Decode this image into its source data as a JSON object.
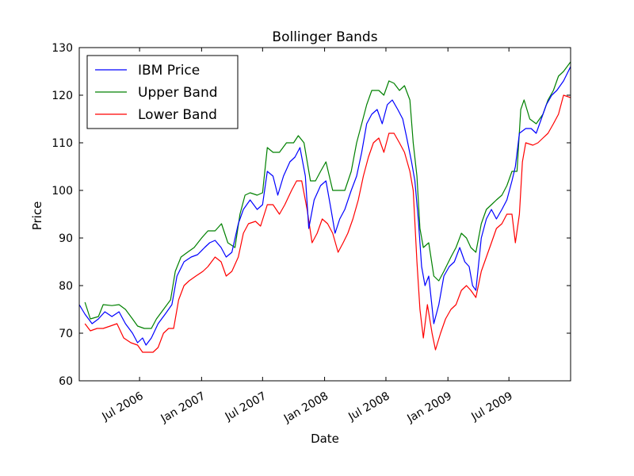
{
  "chart_data": {
    "type": "line",
    "title": "Bollinger Bands",
    "xlabel": "Date",
    "ylabel": "Price",
    "ylim": [
      60,
      130
    ],
    "xlim": [
      "2006-01-03",
      "2009-12-31"
    ],
    "yticks": [
      60,
      70,
      80,
      90,
      100,
      110,
      120,
      130
    ],
    "xticks": [
      {
        "date": "2006-07-01",
        "label": "Jul 2006"
      },
      {
        "date": "2007-01-01",
        "label": "Jan 2007"
      },
      {
        "date": "2007-07-01",
        "label": "Jul 2007"
      },
      {
        "date": "2008-01-01",
        "label": "Jan 2008"
      },
      {
        "date": "2008-07-01",
        "label": "Jul 2008"
      },
      {
        "date": "2009-01-01",
        "label": "Jan 2009"
      },
      {
        "date": "2009-07-01",
        "label": "Jul 2009"
      }
    ],
    "grid": false,
    "legend": "top-left",
    "series": [
      {
        "name": "IBM Price",
        "color": "#0000ff",
        "points": [
          [
            "2006-01-03",
            76
          ],
          [
            "2006-01-20",
            74
          ],
          [
            "2006-02-10",
            72
          ],
          [
            "2006-03-01",
            73
          ],
          [
            "2006-03-20",
            74.5
          ],
          [
            "2006-04-10",
            73.5
          ],
          [
            "2006-05-01",
            74.5
          ],
          [
            "2006-05-20",
            72
          ],
          [
            "2006-06-10",
            70
          ],
          [
            "2006-06-25",
            68
          ],
          [
            "2006-07-10",
            69
          ],
          [
            "2006-07-20",
            67.5
          ],
          [
            "2006-08-05",
            69
          ],
          [
            "2006-08-25",
            72
          ],
          [
            "2006-09-15",
            74
          ],
          [
            "2006-10-05",
            76
          ],
          [
            "2006-10-20",
            82
          ],
          [
            "2006-11-10",
            85
          ],
          [
            "2006-12-01",
            86
          ],
          [
            "2006-12-20",
            86.5
          ],
          [
            "2007-01-10",
            88
          ],
          [
            "2007-01-25",
            89
          ],
          [
            "2007-02-10",
            89.5
          ],
          [
            "2007-02-28",
            88
          ],
          [
            "2007-03-15",
            86
          ],
          [
            "2007-04-01",
            87
          ],
          [
            "2007-04-20",
            93
          ],
          [
            "2007-05-05",
            96
          ],
          [
            "2007-05-25",
            98
          ],
          [
            "2007-06-15",
            96
          ],
          [
            "2007-07-01",
            97
          ],
          [
            "2007-07-15",
            104
          ],
          [
            "2007-08-01",
            103
          ],
          [
            "2007-08-15",
            99
          ],
          [
            "2007-09-01",
            103
          ],
          [
            "2007-09-20",
            106
          ],
          [
            "2007-10-05",
            107
          ],
          [
            "2007-10-20",
            109
          ],
          [
            "2007-11-05",
            103
          ],
          [
            "2007-11-15",
            92
          ],
          [
            "2007-12-01",
            98
          ],
          [
            "2007-12-20",
            101
          ],
          [
            "2008-01-05",
            102
          ],
          [
            "2008-01-20",
            96
          ],
          [
            "2008-02-01",
            91
          ],
          [
            "2008-02-15",
            94
          ],
          [
            "2008-03-01",
            96
          ],
          [
            "2008-03-20",
            100
          ],
          [
            "2008-04-05",
            103
          ],
          [
            "2008-04-20",
            108
          ],
          [
            "2008-05-05",
            114
          ],
          [
            "2008-05-20",
            116
          ],
          [
            "2008-06-05",
            117
          ],
          [
            "2008-06-20",
            114
          ],
          [
            "2008-07-05",
            118
          ],
          [
            "2008-07-20",
            119
          ],
          [
            "2008-08-05",
            117
          ],
          [
            "2008-08-20",
            115
          ],
          [
            "2008-09-01",
            111
          ],
          [
            "2008-09-15",
            106
          ],
          [
            "2008-09-25",
            102
          ],
          [
            "2008-10-05",
            94
          ],
          [
            "2008-10-15",
            84
          ],
          [
            "2008-10-25",
            80
          ],
          [
            "2008-11-05",
            82
          ],
          [
            "2008-11-20",
            72
          ],
          [
            "2008-12-05",
            76
          ],
          [
            "2008-12-20",
            82
          ],
          [
            "2009-01-05",
            84
          ],
          [
            "2009-01-20",
            85
          ],
          [
            "2009-02-05",
            88
          ],
          [
            "2009-02-20",
            85
          ],
          [
            "2009-03-05",
            84
          ],
          [
            "2009-03-15",
            80
          ],
          [
            "2009-03-25",
            79
          ],
          [
            "2009-04-10",
            90
          ],
          [
            "2009-04-25",
            94
          ],
          [
            "2009-05-10",
            96
          ],
          [
            "2009-05-25",
            94
          ],
          [
            "2009-06-10",
            96
          ],
          [
            "2009-06-25",
            98
          ],
          [
            "2009-07-10",
            102
          ],
          [
            "2009-07-20",
            105
          ],
          [
            "2009-08-01",
            112
          ],
          [
            "2009-08-20",
            113
          ],
          [
            "2009-09-05",
            113
          ],
          [
            "2009-09-20",
            112
          ],
          [
            "2009-10-05",
            115
          ],
          [
            "2009-10-20",
            118
          ],
          [
            "2009-11-05",
            120
          ],
          [
            "2009-11-20",
            121
          ],
          [
            "2009-12-10",
            123
          ],
          [
            "2009-12-31",
            126
          ]
        ]
      },
      {
        "name": "Upper Band",
        "color": "#008000",
        "points": [
          [
            "2006-01-20",
            76.5
          ],
          [
            "2006-02-05",
            73
          ],
          [
            "2006-03-01",
            73.5
          ],
          [
            "2006-03-15",
            76
          ],
          [
            "2006-04-10",
            75.8
          ],
          [
            "2006-05-01",
            76
          ],
          [
            "2006-05-20",
            75
          ],
          [
            "2006-06-10",
            73
          ],
          [
            "2006-06-25",
            71.5
          ],
          [
            "2006-07-15",
            71
          ],
          [
            "2006-08-05",
            71
          ],
          [
            "2006-08-20",
            73
          ],
          [
            "2006-09-10",
            75
          ],
          [
            "2006-10-01",
            77
          ],
          [
            "2006-10-15",
            83
          ],
          [
            "2006-11-01",
            86
          ],
          [
            "2006-11-20",
            87
          ],
          [
            "2006-12-10",
            88
          ],
          [
            "2007-01-01",
            90
          ],
          [
            "2007-01-20",
            91.5
          ],
          [
            "2007-02-10",
            91.5
          ],
          [
            "2007-03-01",
            93
          ],
          [
            "2007-03-20",
            89
          ],
          [
            "2007-04-10",
            88
          ],
          [
            "2007-04-25",
            95
          ],
          [
            "2007-05-10",
            99
          ],
          [
            "2007-05-25",
            99.5
          ],
          [
            "2007-06-15",
            99
          ],
          [
            "2007-07-01",
            99.5
          ],
          [
            "2007-07-15",
            109
          ],
          [
            "2007-08-01",
            108
          ],
          [
            "2007-08-20",
            108
          ],
          [
            "2007-09-10",
            110
          ],
          [
            "2007-10-01",
            110
          ],
          [
            "2007-10-15",
            111.5
          ],
          [
            "2007-11-01",
            110
          ],
          [
            "2007-11-20",
            102
          ],
          [
            "2007-12-05",
            102
          ],
          [
            "2007-12-20",
            104
          ],
          [
            "2008-01-05",
            106
          ],
          [
            "2008-01-25",
            100
          ],
          [
            "2008-02-10",
            100
          ],
          [
            "2008-03-01",
            100
          ],
          [
            "2008-03-20",
            104
          ],
          [
            "2008-04-05",
            110
          ],
          [
            "2008-04-20",
            114
          ],
          [
            "2008-05-05",
            118
          ],
          [
            "2008-05-20",
            121
          ],
          [
            "2008-06-10",
            121
          ],
          [
            "2008-06-25",
            120
          ],
          [
            "2008-07-10",
            123
          ],
          [
            "2008-07-25",
            122.5
          ],
          [
            "2008-08-10",
            121
          ],
          [
            "2008-08-25",
            122
          ],
          [
            "2008-09-10",
            119
          ],
          [
            "2008-09-20",
            110
          ],
          [
            "2008-10-01",
            103
          ],
          [
            "2008-10-10",
            92
          ],
          [
            "2008-10-20",
            88
          ],
          [
            "2008-11-05",
            89
          ],
          [
            "2008-11-20",
            82
          ],
          [
            "2008-12-05",
            81
          ],
          [
            "2008-12-20",
            83
          ],
          [
            "2009-01-10",
            86
          ],
          [
            "2009-01-25",
            88
          ],
          [
            "2009-02-10",
            91
          ],
          [
            "2009-02-25",
            90
          ],
          [
            "2009-03-10",
            88
          ],
          [
            "2009-03-25",
            87
          ],
          [
            "2009-04-10",
            93
          ],
          [
            "2009-04-25",
            96
          ],
          [
            "2009-05-10",
            97
          ],
          [
            "2009-05-25",
            98
          ],
          [
            "2009-06-10",
            99
          ],
          [
            "2009-06-25",
            101
          ],
          [
            "2009-07-10",
            104
          ],
          [
            "2009-07-25",
            104
          ],
          [
            "2009-08-05",
            117
          ],
          [
            "2009-08-15",
            119
          ],
          [
            "2009-09-01",
            115
          ],
          [
            "2009-09-20",
            114
          ],
          [
            "2009-10-10",
            116
          ],
          [
            "2009-10-25",
            119
          ],
          [
            "2009-11-10",
            121
          ],
          [
            "2009-11-25",
            124
          ],
          [
            "2009-12-10",
            125
          ],
          [
            "2009-12-31",
            127
          ]
        ]
      },
      {
        "name": "Lower Band",
        "color": "#ff0000",
        "points": [
          [
            "2006-01-20",
            72
          ],
          [
            "2006-02-05",
            70.5
          ],
          [
            "2006-02-25",
            71
          ],
          [
            "2006-03-15",
            71
          ],
          [
            "2006-04-05",
            71.5
          ],
          [
            "2006-04-25",
            72
          ],
          [
            "2006-05-15",
            69
          ],
          [
            "2006-06-05",
            68
          ],
          [
            "2006-06-25",
            67.5
          ],
          [
            "2006-07-10",
            66
          ],
          [
            "2006-07-25",
            66
          ],
          [
            "2006-08-10",
            66
          ],
          [
            "2006-08-25",
            67
          ],
          [
            "2006-09-10",
            70
          ],
          [
            "2006-09-25",
            71
          ],
          [
            "2006-10-10",
            71
          ],
          [
            "2006-10-25",
            77
          ],
          [
            "2006-11-10",
            80
          ],
          [
            "2006-11-25",
            81
          ],
          [
            "2006-12-15",
            82
          ],
          [
            "2007-01-05",
            83
          ],
          [
            "2007-01-20",
            84
          ],
          [
            "2007-02-10",
            86
          ],
          [
            "2007-02-28",
            85
          ],
          [
            "2007-03-15",
            82
          ],
          [
            "2007-04-01",
            83
          ],
          [
            "2007-04-20",
            86
          ],
          [
            "2007-05-05",
            91
          ],
          [
            "2007-05-20",
            93
          ],
          [
            "2007-06-10",
            93.5
          ],
          [
            "2007-06-25",
            92.5
          ],
          [
            "2007-07-15",
            97
          ],
          [
            "2007-08-01",
            97
          ],
          [
            "2007-08-20",
            95
          ],
          [
            "2007-09-05",
            97
          ],
          [
            "2007-09-25",
            100
          ],
          [
            "2007-10-10",
            102
          ],
          [
            "2007-10-25",
            102
          ],
          [
            "2007-11-10",
            96
          ],
          [
            "2007-11-25",
            89
          ],
          [
            "2007-12-10",
            91
          ],
          [
            "2007-12-25",
            94
          ],
          [
            "2008-01-10",
            93
          ],
          [
            "2008-01-25",
            91
          ],
          [
            "2008-02-10",
            87
          ],
          [
            "2008-02-25",
            89
          ],
          [
            "2008-03-10",
            91
          ],
          [
            "2008-03-25",
            94
          ],
          [
            "2008-04-10",
            98
          ],
          [
            "2008-04-25",
            103
          ],
          [
            "2008-05-10",
            107
          ],
          [
            "2008-05-25",
            110
          ],
          [
            "2008-06-10",
            111
          ],
          [
            "2008-06-25",
            108
          ],
          [
            "2008-07-10",
            112
          ],
          [
            "2008-07-25",
            112
          ],
          [
            "2008-08-10",
            110
          ],
          [
            "2008-08-25",
            108
          ],
          [
            "2008-09-10",
            104
          ],
          [
            "2008-09-20",
            100
          ],
          [
            "2008-10-01",
            85
          ],
          [
            "2008-10-10",
            75
          ],
          [
            "2008-10-20",
            69
          ],
          [
            "2008-11-01",
            76
          ],
          [
            "2008-11-15",
            70
          ],
          [
            "2008-11-25",
            66.5
          ],
          [
            "2008-12-10",
            70
          ],
          [
            "2008-12-25",
            73
          ],
          [
            "2009-01-10",
            75
          ],
          [
            "2009-01-25",
            76
          ],
          [
            "2009-02-10",
            79
          ],
          [
            "2009-02-25",
            80
          ],
          [
            "2009-03-10",
            79
          ],
          [
            "2009-03-25",
            77.5
          ],
          [
            "2009-04-10",
            83
          ],
          [
            "2009-04-25",
            86
          ],
          [
            "2009-05-10",
            89
          ],
          [
            "2009-05-25",
            92
          ],
          [
            "2009-06-10",
            93
          ],
          [
            "2009-06-25",
            95
          ],
          [
            "2009-07-10",
            95
          ],
          [
            "2009-07-20",
            89
          ],
          [
            "2009-08-01",
            95
          ],
          [
            "2009-08-10",
            106
          ],
          [
            "2009-08-20",
            110
          ],
          [
            "2009-09-10",
            109.5
          ],
          [
            "2009-09-25",
            110
          ],
          [
            "2009-10-10",
            111
          ],
          [
            "2009-10-25",
            112
          ],
          [
            "2009-11-10",
            114
          ],
          [
            "2009-11-25",
            116
          ],
          [
            "2009-12-10",
            120
          ],
          [
            "2009-12-31",
            119.5
          ]
        ]
      }
    ]
  }
}
